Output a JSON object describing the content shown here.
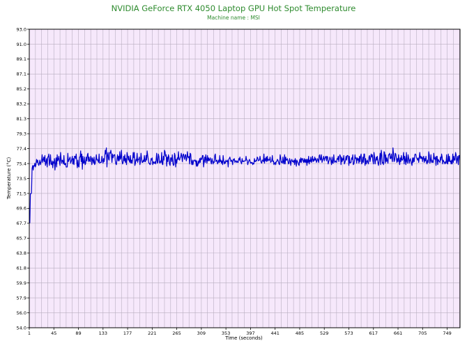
{
  "chart_data": {
    "type": "line",
    "title": "NVIDIA GeForce RTX 4050 Laptop GPU Hot Spot Temperature",
    "subtitle": "Machine name : MSI",
    "xlabel": "Time (seconds)",
    "ylabel": "Temperature (°C)",
    "xlim": [
      1,
      772
    ],
    "ylim": [
      54.0,
      93.0
    ],
    "x_ticks": [
      "1",
      "45",
      "89",
      "133",
      "177",
      "221",
      "265",
      "309",
      "353",
      "397",
      "441",
      "485",
      "529",
      "573",
      "617",
      "661",
      "705",
      "749"
    ],
    "y_ticks": [
      "93.0",
      "91.0",
      "89.1",
      "87.1",
      "85.2",
      "83.2",
      "81.3",
      "79.3",
      "77.4",
      "75.4",
      "73.5",
      "71.5",
      "69.6",
      "67.7",
      "65.7",
      "63.8",
      "61.8",
      "59.9",
      "57.9",
      "56.0",
      "54.0"
    ],
    "grid": true,
    "background_color": "#f6e8fb",
    "grid_color": "#b8aec0",
    "line_color": "#0000cc",
    "title_color": "#2e8b2e",
    "series": [
      {
        "values": [
          67.7,
          67.7,
          71.5,
          71.5,
          71.6,
          74.8,
          75.2,
          74.6,
          75.2,
          75.1,
          75.5,
          75.0,
          75.3,
          76.0,
          75.6,
          75.9,
          75.4,
          75.2,
          75.5,
          75.9,
          75.3,
          75.6,
          75.8,
          76.6,
          75.6,
          75.9,
          76.3,
          75.7,
          76.5,
          75.2,
          75.6,
          76.1,
          75.0,
          76.3,
          76.3,
          76.7,
          75.2,
          75.7,
          76.6,
          75.4,
          75.3,
          75.8,
          74.9,
          75.7,
          75.5,
          76.1,
          74.6,
          75.5,
          76.2,
          75.0,
          76.6,
          75.8,
          76.0,
          76.4,
          75.7,
          75.2,
          76.9,
          76.0,
          75.5,
          75.9,
          75.8,
          75.4,
          76.5,
          75.3,
          75.3,
          75.5,
          75.0,
          75.0,
          75.0,
          76.8,
          75.7,
          75.9,
          76.1,
          76.3,
          75.5,
          75.7,
          76.0,
          76.4,
          75.4,
          76.1,
          75.3,
          76.4,
          76.4,
          76.1,
          76.7,
          75.6,
          74.9,
          75.9,
          75.1,
          75.0,
          76.3,
          76.3,
          77.1,
          75.7,
          76.7,
          74.7,
          76.4,
          75.5,
          75.5,
          76.3,
          75.3,
          75.5,
          76.3,
          75.8,
          76.6,
          76.8,
          75.7,
          76.3,
          75.8,
          75.7,
          76.4,
          76.2,
          75.3,
          76.2,
          75.9,
          75.5,
          76.3,
          75.3,
          75.5,
          75.9,
          76.6,
          75.9,
          76.0,
          75.8,
          75.6,
          76.7,
          75.5,
          75.6,
          75.6,
          75.6,
          76.4,
          75.8,
          75.5,
          76.1,
          75.7,
          76.3,
          77.2,
          76.7,
          77.5,
          75.0,
          76.5,
          76.9,
          76.0,
          75.9,
          76.9,
          76.8,
          77.2,
          76.6,
          75.6,
          76.7,
          76.2,
          76.5,
          76.6,
          76.6,
          75.8,
          75.4,
          75.3,
          76.1,
          76.6,
          75.8,
          76.4,
          75.8,
          77.0,
          76.0,
          76.2,
          77.2,
          75.8,
          75.4,
          75.6,
          76.4,
          75.8,
          76.6,
          75.6,
          76.1,
          75.3,
          76.9,
          76.5,
          75.9,
          76.4,
          75.8,
          75.6,
          76.5,
          75.5,
          75.9,
          75.5,
          76.0,
          76.9,
          76.2,
          76.9,
          75.2,
          75.5,
          76.0,
          75.8,
          76.8,
          75.6,
          76.0,
          76.0,
          76.3,
          75.3,
          75.7,
          76.8,
          76.1,
          75.6,
          75.6,
          75.9,
          75.7,
          76.5,
          75.7,
          75.7,
          76.5,
          75.9,
          77.1,
          76.5,
          76.0,
          75.5,
          75.5,
          75.3,
          75.4,
          76.1,
          75.9,
          76.2,
          75.3,
          75.7,
          75.5,
          75.5,
          75.7,
          75.4,
          75.9,
          76.8,
          75.5,
          75.6,
          76.7,
          76.4,
          75.6,
          75.5,
          75.8,
          75.6,
          76.9,
          75.4,
          75.3,
          76.4,
          75.9,
          77.2,
          77.0,
          76.4,
          76.6,
          75.1,
          76.3,
          75.7,
          76.6,
          76.3,
          75.4,
          75.2,
          76.2,
          76.2,
          75.7,
          76.6,
          75.5,
          75.2,
          75.3,
          76.8,
          76.5,
          75.0,
          76.0,
          75.5,
          76.2,
          76.0,
          77.0,
          76.0,
          75.9,
          76.2,
          76.3,
          76.8,
          76.4,
          75.7,
          76.6,
          76.7,
          76.3,
          76.0,
          76.6,
          76.6,
          75.8,
          76.1,
          77.0,
          76.3,
          76.2,
          76.4,
          75.4,
          76.8,
          76.7,
          75.7,
          75.3,
          75.9,
          75.3,
          75.8,
          75.9,
          75.9,
          75.7,
          75.9,
          75.1,
          75.8,
          75.1,
          75.3,
          75.8,
          75.5,
          76.1,
          75.6,
          76.2,
          76.0,
          76.0,
          76.5,
          76.5,
          75.0,
          75.7,
          76.3,
          75.6,
          76.6,
          76.0,
          75.5,
          76.5,
          75.8,
          76.2,
          75.8,
          76.0,
          76.2,
          75.7,
          75.4,
          76.1,
          75.8,
          75.4,
          75.7,
          75.6,
          76.5,
          76.7,
          75.7,
          75.8,
          75.9,
          75.4,
          75.6,
          75.9,
          75.6,
          76.5,
          75.7,
          75.9,
          75.5,
          75.8,
          75.3,
          76.5,
          75.8,
          75.4,
          75.7,
          75.5,
          75.9,
          75.7,
          75.7,
          75.9,
          75.0,
          76.0,
          76.1,
          76.3,
          76.0,
          75.7,
          75.9,
          75.8,
          75.3,
          76.0,
          75.9,
          76.1,
          75.6,
          75.8,
          75.8,
          75.6,
          75.8,
          75.6,
          75.6,
          76.1,
          75.9,
          76.3,
          75.8,
          75.6,
          75.4,
          76.1,
          75.7,
          75.8,
          75.7,
          75.8,
          75.8,
          75.8,
          76.4,
          75.9,
          75.9,
          75.3,
          75.6,
          75.8,
          76.0,
          75.8,
          75.5,
          75.6,
          75.5,
          75.6,
          75.3,
          75.5,
          75.4,
          76.1,
          75.7,
          75.7,
          75.9,
          75.8,
          76.3,
          76.2,
          75.8,
          75.9,
          75.9,
          76.4,
          75.9,
          75.6,
          75.5,
          75.9,
          75.9,
          75.7,
          76.7,
          75.5,
          76.1,
          75.8,
          76.3,
          75.7,
          76.4,
          75.8,
          76.0,
          75.9,
          75.9,
          76.3,
          75.6,
          75.7,
          75.8,
          76.5,
          75.7,
          75.8,
          75.3,
          75.5,
          75.6,
          75.3,
          75.7,
          75.7,
          76.0,
          75.9,
          75.7,
          75.4,
          75.3,
          76.6,
          76.2,
          75.6,
          75.7,
          75.5,
          76.3,
          75.6,
          75.4,
          76.6,
          75.4,
          76.3,
          75.9,
          75.9,
          76.1,
          75.8,
          75.4,
          75.5,
          76.1,
          75.8,
          75.2,
          75.8,
          76.0,
          75.7,
          75.8,
          75.6,
          75.9,
          75.3,
          76.1,
          75.8,
          75.1,
          75.9,
          75.7,
          75.6,
          75.3,
          75.2,
          76.0,
          75.6,
          76.2,
          75.6,
          76.1,
          76.1,
          75.8,
          75.6,
          76.1,
          75.6,
          76.0,
          75.6,
          76.0,
          75.2,
          76.0,
          75.6,
          76.4,
          75.4,
          75.9,
          75.7,
          76.3,
          75.6,
          75.9,
          76.4,
          75.7,
          76.0,
          75.8,
          76.3,
          75.9,
          76.1,
          75.6,
          75.8,
          76.1,
          75.9,
          75.6,
          76.5,
          76.6,
          75.9,
          76.0,
          76.6,
          75.6,
          75.9,
          76.1,
          76.4,
          75.8,
          76.1,
          76.3,
          76.4,
          75.8,
          76.4,
          76.3,
          75.4,
          75.7,
          75.9,
          76.3,
          76.1,
          75.8,
          75.3,
          76.3,
          75.5,
          75.5,
          76.6,
          75.8,
          75.6,
          75.8,
          75.7,
          75.6,
          76.1,
          76.0,
          76.4,
          75.7,
          76.3,
          76.6,
          76.4,
          75.3,
          76.3,
          75.7,
          76.1,
          75.9,
          76.5,
          75.4,
          75.6,
          75.9,
          76.4,
          75.9,
          76.5,
          76.5,
          76.4,
          75.2,
          76.4,
          75.5,
          75.6,
          75.6,
          76.2,
          76.0,
          76.6,
          75.3,
          75.4,
          75.8,
          76.6,
          76.1,
          76.2,
          75.5,
          76.2,
          75.9,
          76.1,
          75.5,
          76.4,
          75.7,
          76.4,
          76.7,
          75.4,
          75.6,
          76.3,
          75.6,
          76.7,
          76.7,
          75.2,
          76.1,
          75.4,
          75.7,
          75.9,
          75.6,
          75.4,
          76.3,
          76.5,
          75.7,
          76.2,
          76.7,
          76.3,
          76.6,
          75.8,
          75.4,
          76.9,
          76.3,
          75.4,
          75.9,
          76.3,
          75.9,
          76.4,
          75.6,
          75.2,
          75.7,
          76.1,
          76.8,
          75.3,
          77.2,
          76.6,
          75.5,
          75.6,
          75.3,
          77.0,
          76.9,
          75.5,
          76.6,
          75.7,
          76.2,
          75.8,
          75.5,
          76.6,
          76.6,
          76.8,
          76.1,
          76.1,
          76.7,
          76.1,
          75.7,
          77.5,
          76.7,
          75.7,
          75.9,
          76.8,
          76.7,
          76.2,
          75.6,
          76.1,
          75.7,
          76.6,
          75.8,
          75.3,
          76.2,
          75.7,
          76.5,
          75.9,
          75.9,
          76.1,
          76.9,
          75.4,
          76.4,
          75.9,
          75.3,
          76.9,
          75.7,
          75.5,
          76.6,
          76.2,
          75.5,
          75.9,
          76.1,
          75.8,
          75.5,
          75.2,
          76.2,
          75.6,
          76.2,
          75.7,
          76.6,
          76.7,
          76.6,
          76.2,
          76.1,
          75.9,
          76.2,
          75.6,
          76.2,
          76.9,
          76.1,
          76.4,
          76.1,
          76.3,
          75.7,
          76.2,
          76.4,
          75.6,
          76.1,
          75.8,
          76.4,
          75.6,
          75.4,
          75.9,
          75.6,
          77.0,
          76.6,
          75.5,
          75.9,
          76.6,
          75.6,
          75.9,
          75.6,
          75.6,
          76.8,
          76.1,
          76.0,
          76.3,
          75.2,
          76.4,
          76.4,
          75.3,
          76.0,
          75.8,
          75.7,
          75.6,
          76.3,
          75.9,
          76.7,
          76.3,
          75.4,
          75.9,
          75.7,
          75.6,
          75.4,
          75.7,
          75.5,
          76.6,
          75.5,
          75.4,
          76.7,
          75.7,
          76.4,
          75.7,
          75.8,
          75.4,
          75.9,
          75.4,
          76.7,
          75.6,
          76.4,
          75.9,
          75.9,
          76.9,
          76.6,
          75.5,
          76.0,
          76.4,
          75.3,
          76.5,
          76.5,
          75.9
        ]
      }
    ]
  }
}
